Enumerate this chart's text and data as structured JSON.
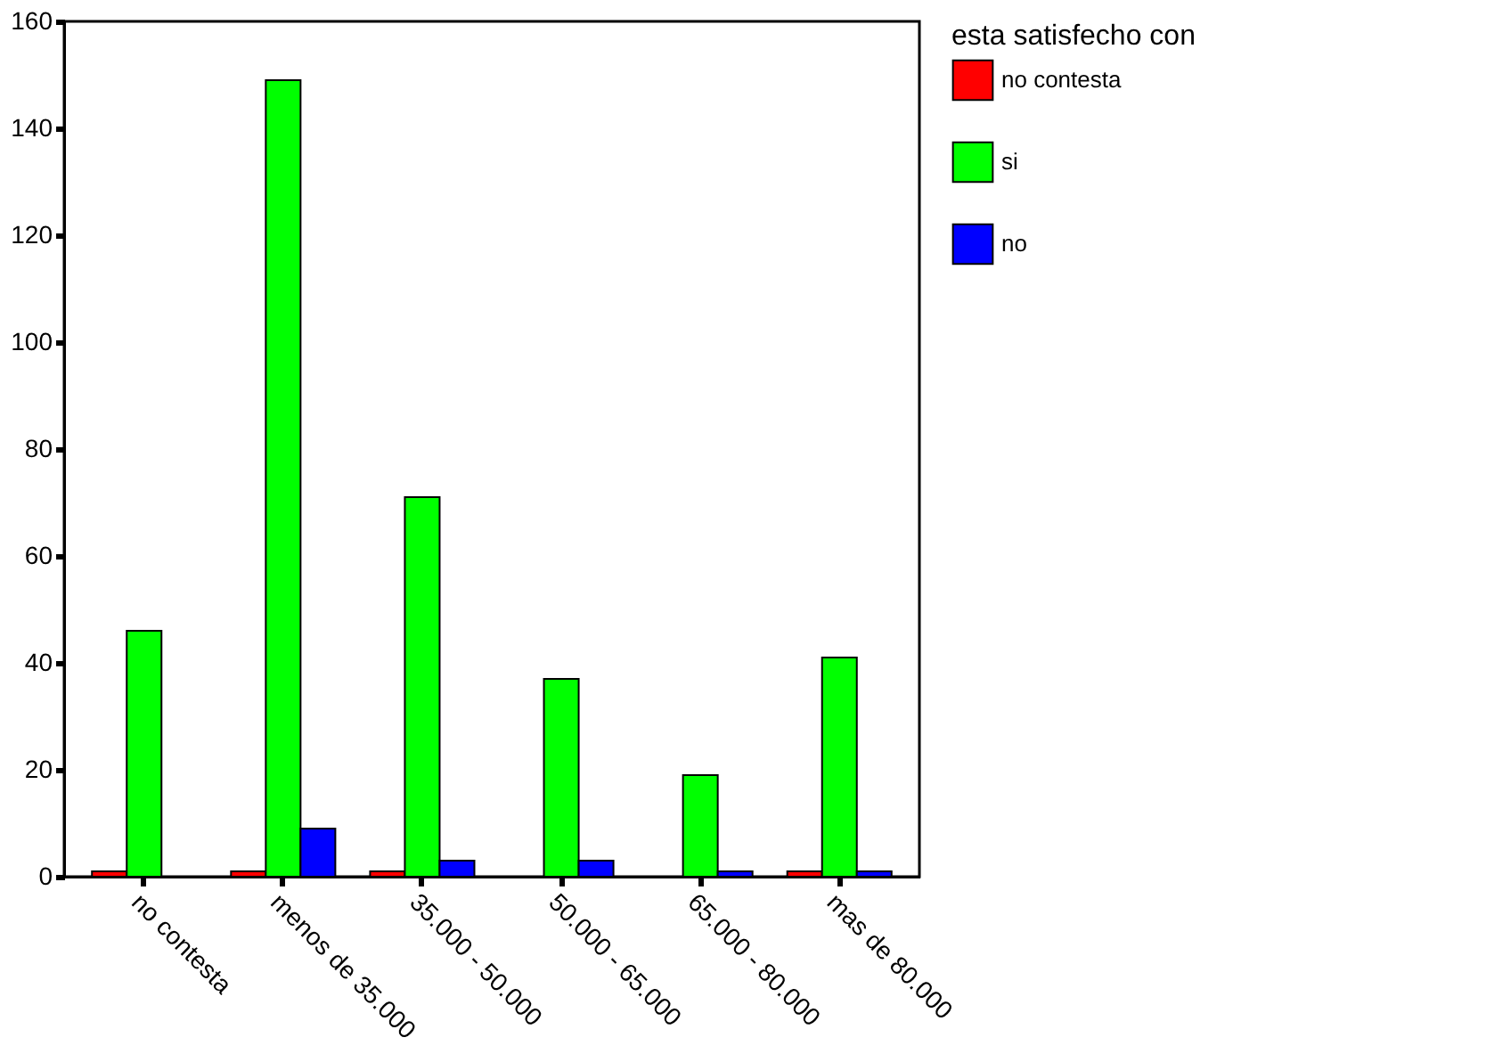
{
  "chart_data": {
    "type": "bar",
    "legend_title": "esta satisfecho con",
    "categories": [
      "no contesta",
      "menos de 35.000",
      "35.000 - 50.000",
      "50.000 - 65.000",
      "65.000 - 80.000",
      "mas de 80.000"
    ],
    "series": [
      {
        "name": "no contesta",
        "color": "#ff0000",
        "values": [
          1,
          1,
          1,
          0,
          0,
          1
        ]
      },
      {
        "name": "si",
        "color": "#00ff00",
        "values": [
          46,
          149,
          71,
          37,
          19,
          41
        ]
      },
      {
        "name": "no",
        "color": "#0000ff",
        "values": [
          0,
          9,
          3,
          3,
          1,
          1
        ]
      }
    ],
    "ylim": [
      0,
      160
    ],
    "yticks": [
      0,
      20,
      40,
      60,
      80,
      100,
      120,
      140,
      160
    ],
    "grid": false,
    "legend": "right"
  }
}
